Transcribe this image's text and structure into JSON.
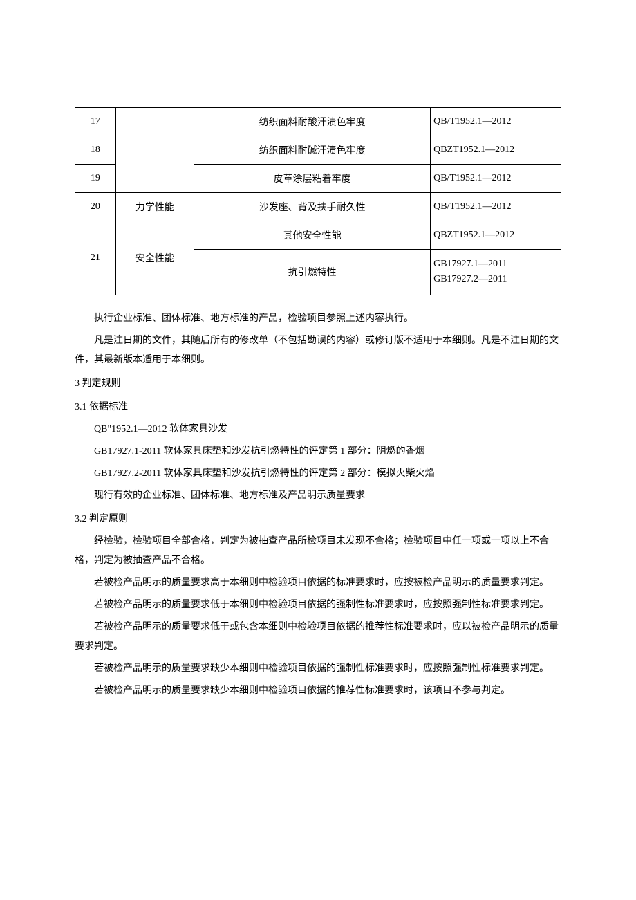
{
  "table": {
    "columns": {
      "num_width": 56,
      "cat_width": 108,
      "item_width": 326,
      "std_width": 180
    },
    "border_color": "#000000",
    "font_size": 14,
    "rows": [
      {
        "num": "17",
        "cat": "",
        "item": "纺织面料耐酸汗渍色牢度",
        "std": "QB/T1952.1—2012"
      },
      {
        "num": "18",
        "cat": "",
        "item": "纺织面料耐碱汗渍色牢度",
        "std": "QBZT1952.1—2012"
      },
      {
        "num": "19",
        "cat": "",
        "item": "皮革涂层粘着牢度",
        "std": "QB/T1952.1—2012"
      },
      {
        "num": "20",
        "cat": "力学性能",
        "item": "沙发座、背及扶手耐久性",
        "std": "QB/T1952.1—2012"
      },
      {
        "num": "21",
        "cat": "安全性能",
        "item": "其他安全性能",
        "std": "QBZT1952.1—2012"
      },
      {
        "num": "",
        "cat": "",
        "item": "抗引燃特性",
        "std": "GB17927.1—2011\nGB17927.2—2011"
      }
    ]
  },
  "body": {
    "p1": "执行企业标准、团体标准、地方标准的产品，检验项目参照上述内容执行。",
    "p2": "凡是注日期的文件，其随后所有的修改单（不包括勘误的内容）或修订版不适用于本细则。凡是不注日期的文件，其最新版本适用于本细则。",
    "h3": "3 判定规则",
    "h31": "3.1  依据标准",
    "s31_a": "QB\"1952.1—2012 软体家具沙发",
    "s31_b": "GB17927.1-2011 软体家具床垫和沙发抗引燃特性的评定第 1 部分：阴燃的香烟",
    "s31_c": "GB17927.2-2011 软体家具床垫和沙发抗引燃特性的评定第 2 部分：模拟火柴火焰",
    "s31_d": "现行有效的企业标准、团体标准、地方标准及产品明示质量要求",
    "h32": "3.2  判定原则",
    "p32_1": "经检验，检验项目全部合格，判定为被抽查产品所检项目未发现不合格；检验项目中任一项或一项以上不合格，判定为被抽查产品不合格。",
    "p32_2": "若被检产品明示的质量要求高于本细则中检验项目依据的标准要求时，应按被检产品明示的质量要求判定。",
    "p32_3": "若被检产品明示的质量要求低于本细则中检验项目依据的强制性标准要求时，应按照强制性标准要求判定。",
    "p32_4": "若被检产品明示的质量要求低于或包含本细则中检验项目依据的推荐性标准要求时，应以被检产品明示的质量要求判定。",
    "p32_5": "若被检产品明示的质量要求缺少本细则中检验项目依据的强制性标准要求时，应按照强制性标准要求判定。",
    "p32_6": "若被检产品明示的质量要求缺少本细则中检验项目依据的推荐性标准要求时，该项目不参与判定。"
  },
  "style": {
    "page_bg": "#ffffff",
    "text_color": "#000000",
    "body_font_size": 14,
    "line_height": 2.0
  }
}
